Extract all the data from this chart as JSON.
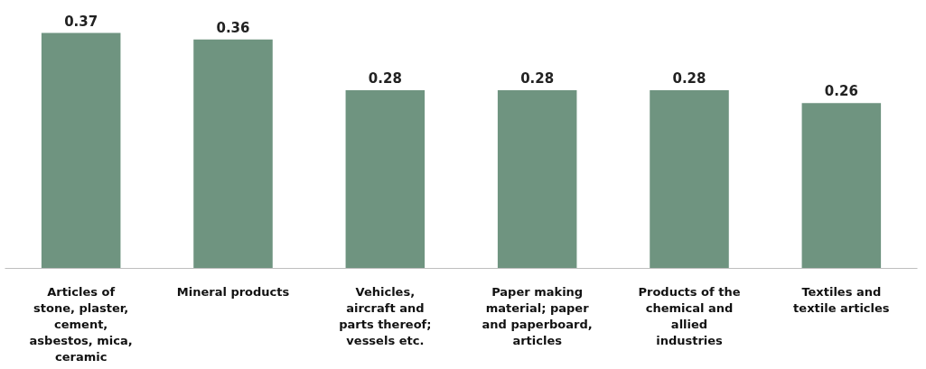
{
  "chart_data": {
    "type": "bar",
    "categories": [
      "Articles of stone, plaster, cement, asbestos, mica, ceramic",
      "Mineral products",
      "Vehicles, aircraft and parts thereof; vessels etc.",
      "Paper making material; paper and paperboard, articles",
      "Products of the chemical and allied industries",
      "Textiles and textile articles"
    ],
    "values": [
      0.37,
      0.36,
      0.28,
      0.28,
      0.28,
      0.26
    ],
    "color": "#6f9480",
    "data_labels": true
  }
}
